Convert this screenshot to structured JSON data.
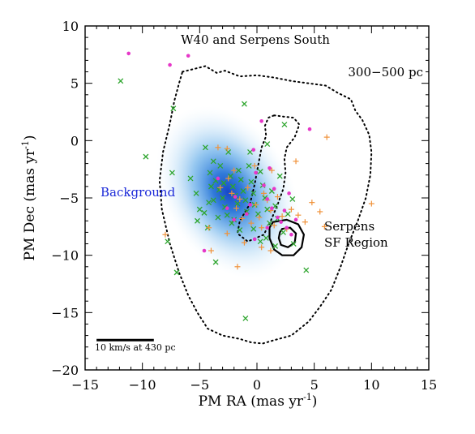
{
  "chart_data": {
    "type": "scatter",
    "title": "W40 and Serpens South",
    "xlabel": "PM RA (mas yr",
    "ylabel": "PM Dec (mas yr",
    "unit_exponent": "-1",
    "xlim": [
      -15,
      15
    ],
    "ylim": [
      -20,
      10
    ],
    "x_ticks": [
      -15,
      -10,
      -5,
      0,
      5,
      10,
      15
    ],
    "y_ticks": [
      -20,
      -15,
      -10,
      -5,
      0,
      5,
      10
    ],
    "x_tick_labels": [
      "−15",
      "−10",
      "−5",
      "0",
      "5",
      "10",
      "15"
    ],
    "y_tick_labels": [
      "−20",
      "−15",
      "−10",
      "−5",
      "0",
      "5",
      "10"
    ],
    "grid": false,
    "annotations": {
      "distance_label": "300−500 pc",
      "background_label": "Background",
      "serpens_label_line1": "Serpens",
      "serpens_label_line2": "SF Region",
      "scalebar_label": "10 km/s at 430 pc"
    },
    "scalebar": {
      "x_start": -14,
      "x_end": -9,
      "y": -17.4
    },
    "background_density": {
      "description": "blue smoothed density of background sources",
      "color": "#1f6fd6",
      "center": [
        -2.5,
        -4.5
      ],
      "sigma_x": 3.6,
      "sigma_y": 5.2,
      "rotation_deg": -30
    },
    "contour_300_500pc": [
      [
        -6.5,
        6.0
      ],
      [
        -4.5,
        6.5
      ],
      [
        -3.5,
        5.9
      ],
      [
        -2.8,
        6.1
      ],
      [
        -1.5,
        5.6
      ],
      [
        0.0,
        5.7
      ],
      [
        1.5,
        5.5
      ],
      [
        3.0,
        5.2
      ],
      [
        4.5,
        5.0
      ],
      [
        6.0,
        4.8
      ],
      [
        7.0,
        4.2
      ],
      [
        8.2,
        3.6
      ],
      [
        8.6,
        2.6
      ],
      [
        9.2,
        1.8
      ],
      [
        9.8,
        0.5
      ],
      [
        10.0,
        -1.0
      ],
      [
        9.9,
        -3.0
      ],
      [
        9.5,
        -5.0
      ],
      [
        8.8,
        -7.0
      ],
      [
        8.0,
        -9.0
      ],
      [
        7.3,
        -11.0
      ],
      [
        6.5,
        -13.0
      ],
      [
        5.5,
        -14.5
      ],
      [
        4.5,
        -15.8
      ],
      [
        3.0,
        -17.0
      ],
      [
        1.5,
        -17.4
      ],
      [
        0.5,
        -17.7
      ],
      [
        -0.5,
        -17.6
      ],
      [
        -1.5,
        -17.3
      ],
      [
        -3.0,
        -17.0
      ],
      [
        -4.3,
        -16.4
      ],
      [
        -5.2,
        -15.0
      ],
      [
        -6.0,
        -13.5
      ],
      [
        -6.8,
        -11.5
      ],
      [
        -7.6,
        -9.0
      ],
      [
        -8.3,
        -6.0
      ],
      [
        -8.5,
        -3.5
      ],
      [
        -8.2,
        -1.0
      ],
      [
        -7.6,
        1.5
      ],
      [
        -7.2,
        3.5
      ],
      [
        -6.8,
        5.0
      ],
      [
        -6.5,
        6.0
      ]
    ],
    "contour_inner_dotted": [
      [
        1.5,
        2.2
      ],
      [
        2.3,
        2.1
      ],
      [
        3.2,
        2.0
      ],
      [
        3.7,
        1.4
      ],
      [
        3.3,
        0.3
      ],
      [
        2.6,
        -0.6
      ],
      [
        2.4,
        -1.6
      ],
      [
        2.5,
        -2.8
      ],
      [
        2.3,
        -4.2
      ],
      [
        1.8,
        -5.6
      ],
      [
        1.2,
        -7.0
      ],
      [
        0.6,
        -8.2
      ],
      [
        -0.8,
        -8.8
      ],
      [
        -1.7,
        -8.1
      ],
      [
        -1.5,
        -7.0
      ],
      [
        -0.6,
        -5.5
      ],
      [
        -0.2,
        -3.8
      ],
      [
        0.1,
        -2.2
      ],
      [
        0.4,
        -0.6
      ],
      [
        0.8,
        0.4
      ],
      [
        0.7,
        1.3
      ],
      [
        1.0,
        2.0
      ],
      [
        1.5,
        2.2
      ]
    ],
    "contour_serpens_outer": [
      [
        1.4,
        -7.1
      ],
      [
        2.6,
        -6.9
      ],
      [
        3.6,
        -7.3
      ],
      [
        4.1,
        -8.2
      ],
      [
        3.9,
        -9.3
      ],
      [
        3.2,
        -10.0
      ],
      [
        2.2,
        -10.0
      ],
      [
        1.5,
        -9.5
      ],
      [
        1.1,
        -8.5
      ],
      [
        1.1,
        -7.6
      ],
      [
        1.4,
        -7.1
      ]
    ],
    "contour_serpens_inner": [
      [
        2.2,
        -7.7
      ],
      [
        2.9,
        -7.6
      ],
      [
        3.4,
        -8.1
      ],
      [
        3.3,
        -8.9
      ],
      [
        2.7,
        -9.3
      ],
      [
        2.1,
        -9.1
      ],
      [
        1.9,
        -8.5
      ],
      [
        2.0,
        -8.0
      ],
      [
        2.2,
        -7.7
      ]
    ],
    "series": [
      {
        "name": "",
        "marker": "x",
        "color": "#2ea52e",
        "points": [
          [
            -11.9,
            5.2
          ],
          [
            -7.3,
            2.8
          ],
          [
            -9.7,
            -1.4
          ],
          [
            -7.4,
            -2.8
          ],
          [
            -7.8,
            -8.8
          ],
          [
            -7.0,
            -11.5
          ],
          [
            -5.3,
            -4.6
          ],
          [
            -4.5,
            -0.6
          ],
          [
            -3.8,
            -1.8
          ],
          [
            -3.2,
            -2.2
          ],
          [
            -5.8,
            -3.3
          ],
          [
            -5.0,
            -6.0
          ],
          [
            -5.2,
            -7.0
          ],
          [
            -4.6,
            -6.3
          ],
          [
            -4.2,
            -5.4
          ],
          [
            -4.0,
            -4.0
          ],
          [
            -3.6,
            -3.5
          ],
          [
            -3.3,
            -4.3
          ],
          [
            -3.0,
            -5.0
          ],
          [
            -2.8,
            -5.8
          ],
          [
            -2.6,
            -6.5
          ],
          [
            -2.3,
            -3.1
          ],
          [
            -2.1,
            -4.0
          ],
          [
            -1.9,
            -4.8
          ],
          [
            -1.7,
            -5.5
          ],
          [
            -1.6,
            -2.6
          ],
          [
            -1.4,
            -3.4
          ],
          [
            -1.2,
            -4.4
          ],
          [
            -1.0,
            -5.2
          ],
          [
            -0.9,
            -6.2
          ],
          [
            -0.7,
            -2.2
          ],
          [
            -0.5,
            -3.6
          ],
          [
            -0.3,
            -4.6
          ],
          [
            -0.2,
            -5.6
          ],
          [
            0.1,
            -6.4
          ],
          [
            0.3,
            -2.7
          ],
          [
            0.5,
            -3.9
          ],
          [
            0.7,
            -5.0
          ],
          [
            0.9,
            -6.0
          ],
          [
            1.1,
            -7.2
          ],
          [
            1.3,
            -4.4
          ],
          [
            1.6,
            -5.7
          ],
          [
            1.8,
            -6.8
          ],
          [
            2.0,
            -3.1
          ],
          [
            2.3,
            -8.0
          ],
          [
            2.7,
            -6.4
          ],
          [
            3.1,
            -5.1
          ],
          [
            2.4,
            1.4
          ],
          [
            -1.1,
            3.2
          ],
          [
            -3.6,
            -10.6
          ],
          [
            -1.0,
            -15.5
          ],
          [
            4.3,
            -11.3
          ],
          [
            3.2,
            -9.0
          ],
          [
            -4.3,
            -7.6
          ],
          [
            -2.2,
            -7.2
          ],
          [
            -0.3,
            -7.7
          ],
          [
            0.8,
            -8.5
          ],
          [
            1.6,
            -9.2
          ],
          [
            -2.0,
            -6.9
          ],
          [
            -3.8,
            -5.2
          ],
          [
            -4.1,
            -2.8
          ],
          [
            -2.5,
            -1.0
          ],
          [
            -0.6,
            -1.0
          ],
          [
            0.9,
            -0.3
          ],
          [
            -1.5,
            -7.8
          ],
          [
            0.3,
            -8.8
          ],
          [
            -2.9,
            -3.7
          ],
          [
            -3.4,
            -6.7
          ]
        ]
      },
      {
        "name": "",
        "marker": "+",
        "color": "#f0923a",
        "points": [
          [
            -3.4,
            -0.6
          ],
          [
            -2.6,
            -0.7
          ],
          [
            -3.2,
            -4.1
          ],
          [
            -2.5,
            -3.3
          ],
          [
            -2.2,
            -4.6
          ],
          [
            -1.8,
            -5.9
          ],
          [
            -1.3,
            -6.8
          ],
          [
            -0.8,
            -4.1
          ],
          [
            -0.5,
            -7.2
          ],
          [
            -0.1,
            -5.6
          ],
          [
            0.2,
            -6.7
          ],
          [
            0.4,
            -7.6
          ],
          [
            0.6,
            -4.6
          ],
          [
            0.9,
            -5.2
          ],
          [
            1.2,
            -6.1
          ],
          [
            1.5,
            -7.4
          ],
          [
            1.8,
            -4.9
          ],
          [
            2.2,
            -6.6
          ],
          [
            2.6,
            -7.7
          ],
          [
            3.0,
            -6.0
          ],
          [
            3.6,
            -6.5
          ],
          [
            4.2,
            -7.1
          ],
          [
            4.8,
            -5.4
          ],
          [
            5.5,
            -6.2
          ],
          [
            5.9,
            -7.5
          ],
          [
            6.1,
            0.3
          ],
          [
            3.4,
            -1.8
          ],
          [
            1.3,
            -2.6
          ],
          [
            -0.2,
            -2.2
          ],
          [
            -8.0,
            -8.2
          ],
          [
            -4.0,
            -9.6
          ],
          [
            -2.6,
            -8.1
          ],
          [
            -1.1,
            -8.9
          ],
          [
            0.4,
            -9.3
          ],
          [
            1.2,
            -9.6
          ],
          [
            -1.7,
            -11.0
          ],
          [
            10.0,
            -5.5
          ],
          [
            -1.5,
            -5.1
          ],
          [
            -2.0,
            -2.6
          ],
          [
            -4.2,
            -7.6
          ]
        ]
      },
      {
        "name": "",
        "marker": "dot",
        "color": "#e637c8",
        "points": [
          [
            -11.2,
            7.6
          ],
          [
            -7.6,
            6.6
          ],
          [
            -6.0,
            7.4
          ],
          [
            0.4,
            1.7
          ],
          [
            4.6,
            1.0
          ],
          [
            -0.3,
            -0.8
          ],
          [
            -0.1,
            -2.8
          ],
          [
            0.6,
            -3.9
          ],
          [
            0.9,
            -5.1
          ],
          [
            1.3,
            -5.9
          ],
          [
            1.8,
            -6.7
          ],
          [
            2.1,
            -7.1
          ],
          [
            2.6,
            -7.6
          ],
          [
            3.0,
            -8.2
          ],
          [
            3.4,
            -6.9
          ],
          [
            -0.6,
            -5.6
          ],
          [
            -0.9,
            -6.4
          ],
          [
            -1.9,
            -4.9
          ],
          [
            -2.6,
            -5.9
          ],
          [
            -3.4,
            -3.3
          ],
          [
            -4.6,
            -9.6
          ],
          [
            -0.2,
            -8.6
          ],
          [
            0.9,
            -7.6
          ],
          [
            1.5,
            -4.2
          ],
          [
            -2.0,
            -6.9
          ],
          [
            2.4,
            -6.1
          ],
          [
            1.1,
            -2.4
          ],
          [
            2.8,
            -4.6
          ]
        ]
      }
    ]
  }
}
